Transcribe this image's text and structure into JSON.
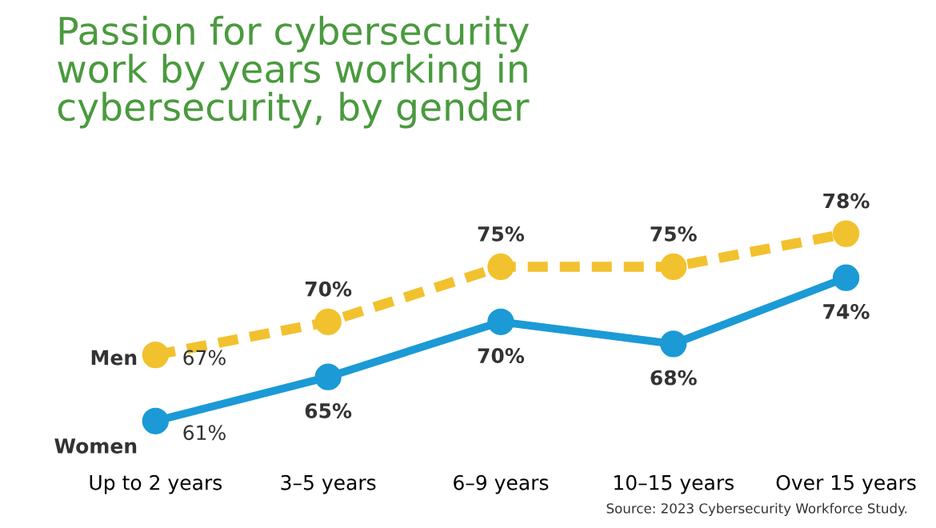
{
  "chart_data": {
    "type": "line",
    "title": "Passion for cybersecurity\nwork by years working in\ncybersecurity, by gender",
    "categories": [
      "Up to 2 years",
      "3–5 years",
      "6–9 years",
      "10–15 years",
      "Over 15 years"
    ],
    "series": [
      {
        "name": "Men",
        "color": "#f2c12e",
        "values": [
          67,
          70,
          75,
          75,
          78
        ],
        "line_style": "dashed",
        "value_labels": [
          "67%",
          "70%",
          "75%",
          "75%",
          "78%"
        ]
      },
      {
        "name": "Women",
        "color": "#1b9ad6",
        "values": [
          61,
          65,
          70,
          68,
          74
        ],
        "line_style": "solid",
        "value_labels": [
          "61%",
          "65%",
          "70%",
          "68%",
          "74%"
        ]
      }
    ],
    "marker": "circle",
    "tick_labels": "x",
    "grid": false,
    "legend": false,
    "annotations": [
      "Source: 2023 Cybersecurity Workforce Study."
    ]
  }
}
